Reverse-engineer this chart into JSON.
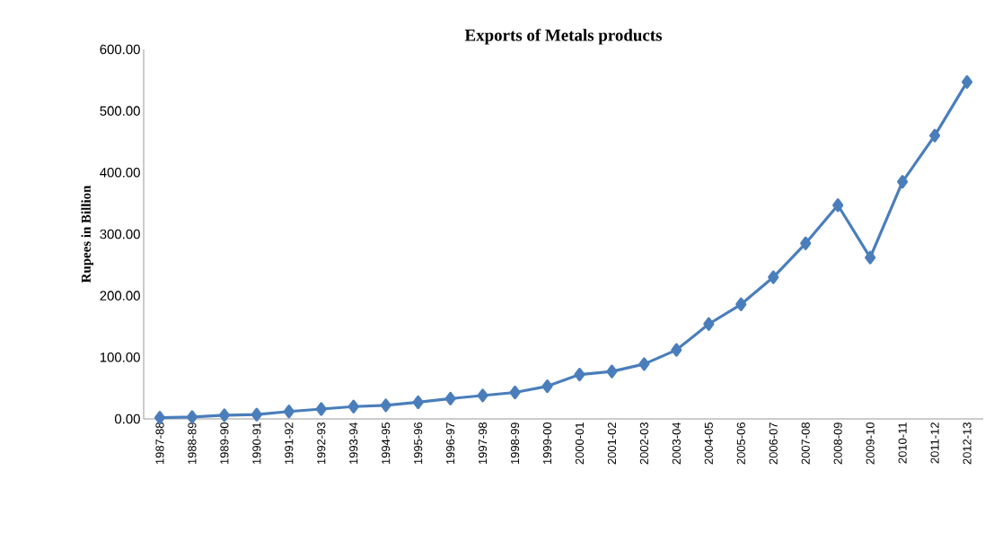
{
  "chart_data": {
    "type": "line",
    "title": "Exports of Metals products",
    "ylabel": "Rupees in Billion",
    "categories": [
      "1987-88",
      "1988-89",
      "1989-90",
      "1990-91",
      "1991-92",
      "1992-93",
      "1993-94",
      "1994-95",
      "1995-96",
      "1996-97",
      "1997-98",
      "1998-99",
      "1999-00",
      "2000-01",
      "2001-02",
      "2002-03",
      "2003-04",
      "2004-05",
      "2005-06",
      "2006-07",
      "2007-08",
      "2008-09",
      "2009-10",
      "2010-11",
      "2011-12",
      "2012-13"
    ],
    "series": [
      {
        "color": "#4a7ebb",
        "values": [
          2,
          3,
          6,
          7,
          12,
          16,
          20,
          22,
          27,
          33,
          38,
          43,
          53,
          72,
          77,
          89,
          112,
          154,
          186,
          230,
          285,
          347,
          262,
          385,
          460,
          547
        ]
      }
    ],
    "ylim": [
      0,
      600
    ],
    "yticks": [
      {
        "value": 0,
        "label": "0.00"
      },
      {
        "value": 100,
        "label": "100.00"
      },
      {
        "value": 200,
        "label": "200.00"
      },
      {
        "value": 300,
        "label": "300.00"
      },
      {
        "value": 400,
        "label": "400.00"
      },
      {
        "value": 500,
        "label": "500.00"
      },
      {
        "value": 600,
        "label": "600.00"
      }
    ],
    "marker": "diamond",
    "line_style": "solid",
    "grid": false
  }
}
